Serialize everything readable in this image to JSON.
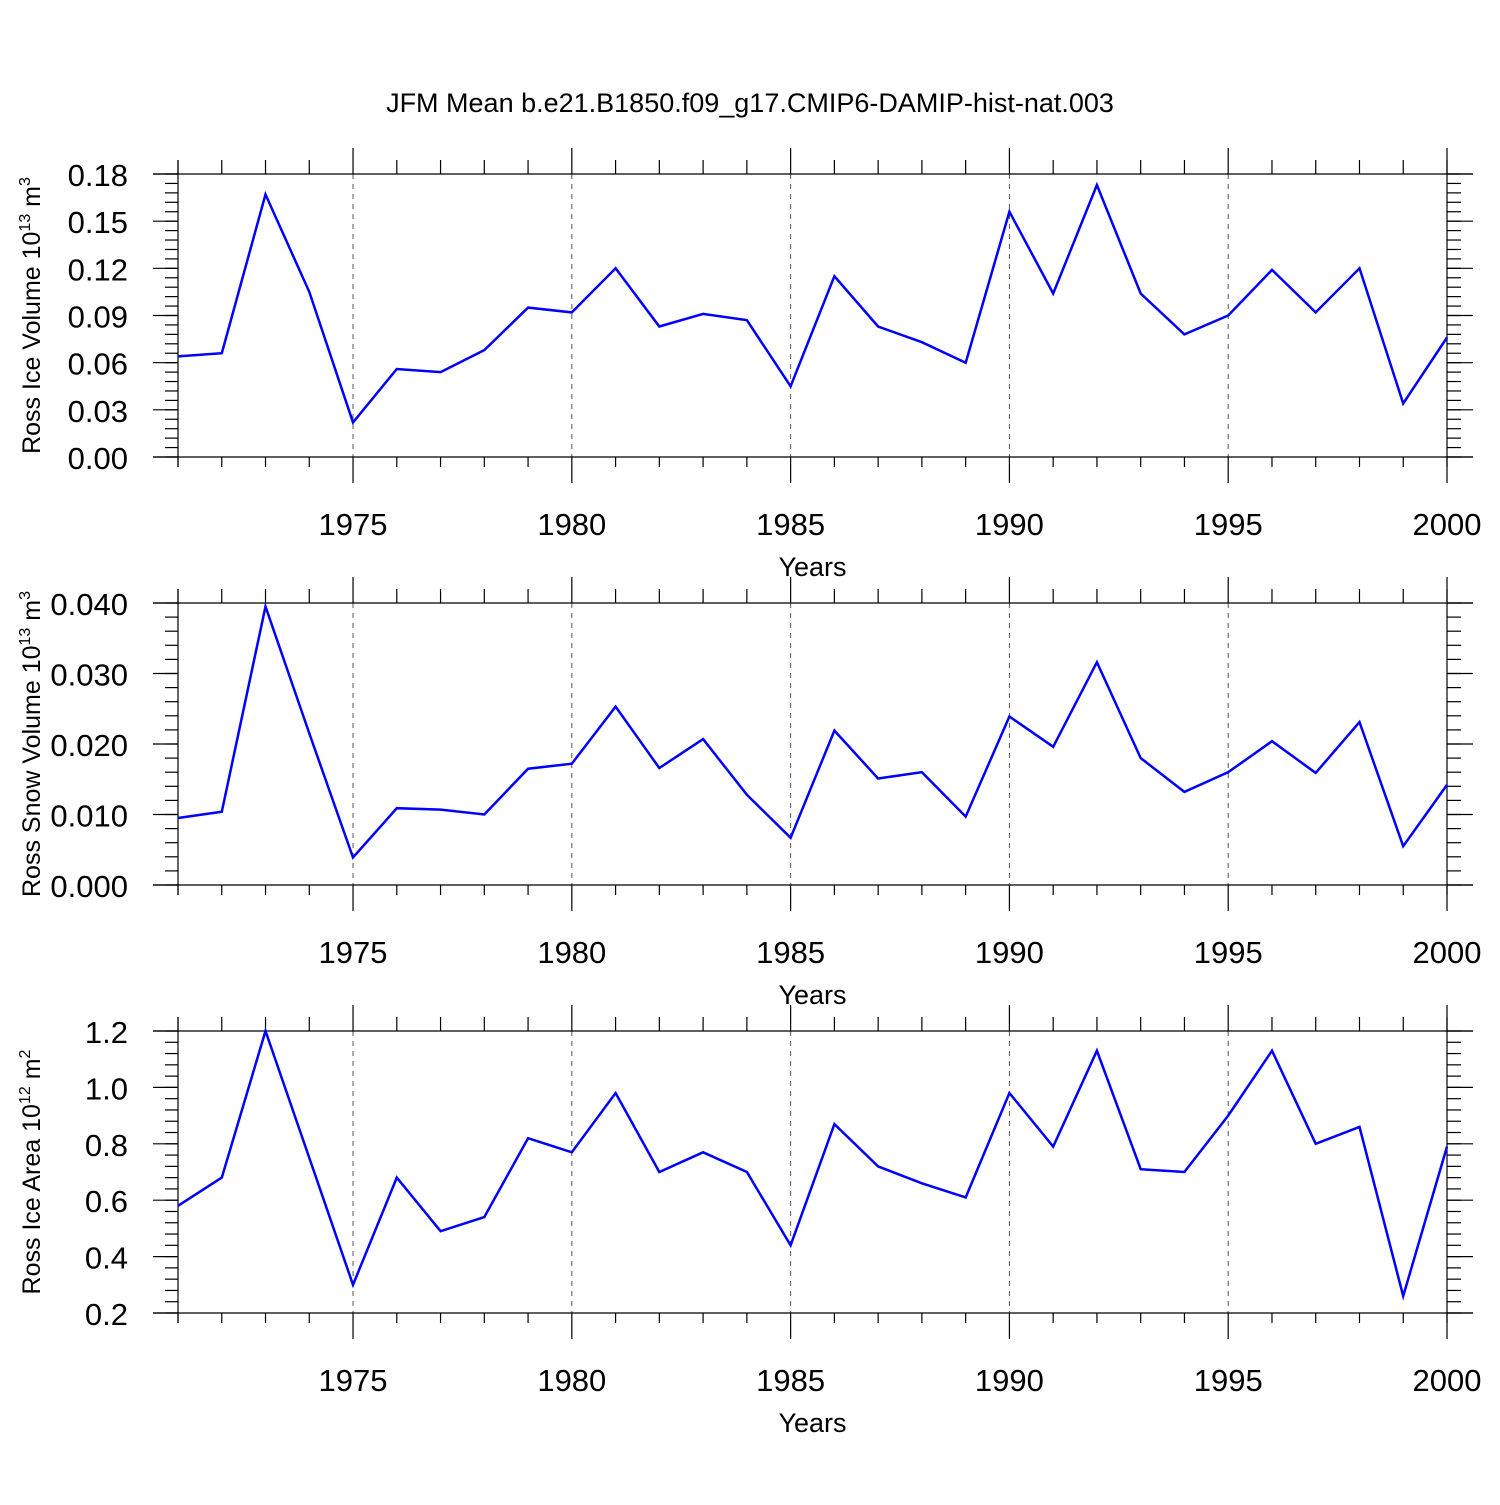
{
  "title": "JFM Mean b.e21.B1850.f09_g17.CMIP6-DAMIP-hist-nat.003",
  "colors": {
    "line": "#0000ff",
    "axes": "#000000",
    "grid": "#555555"
  },
  "chart_data": [
    {
      "type": "line",
      "ylabel_main": "Ross Ice Volume 10",
      "ylabel_sup": "13",
      "ylabel_unit": " m",
      "ylabel_unit_sup": "3",
      "xlabel": "Years",
      "xlim": [
        1971,
        2000
      ],
      "ylim": [
        0.0,
        0.18
      ],
      "yticks": [
        "0.00",
        "0.03",
        "0.06",
        "0.09",
        "0.12",
        "0.15",
        "0.18"
      ],
      "xticks": [
        "1975",
        "1980",
        "1985",
        "1990",
        "1995",
        "2000"
      ],
      "x": [
        1971,
        1972,
        1973,
        1974,
        1975,
        1976,
        1977,
        1978,
        1979,
        1980,
        1981,
        1982,
        1983,
        1984,
        1985,
        1986,
        1987,
        1988,
        1989,
        1990,
        1991,
        1992,
        1993,
        1994,
        1995,
        1996,
        1997,
        1998,
        1999,
        2000
      ],
      "series": [
        {
          "name": "Ross Ice Volume",
          "values": [
            0.064,
            0.066,
            0.167,
            0.105,
            0.022,
            0.056,
            0.054,
            0.068,
            0.095,
            0.092,
            0.12,
            0.083,
            0.091,
            0.087,
            0.045,
            0.115,
            0.083,
            0.073,
            0.06,
            0.156,
            0.104,
            0.173,
            0.104,
            0.078,
            0.09,
            0.119,
            0.092,
            0.12,
            0.034,
            0.076
          ]
        }
      ]
    },
    {
      "type": "line",
      "ylabel_main": "Ross Snow Volume 10",
      "ylabel_sup": "13",
      "ylabel_unit": " m",
      "ylabel_unit_sup": "3",
      "xlabel": "Years",
      "xlim": [
        1971,
        2000
      ],
      "ylim": [
        0.0,
        0.04
      ],
      "yticks": [
        "0.000",
        "0.010",
        "0.020",
        "0.030",
        "0.040"
      ],
      "xticks": [
        "1975",
        "1980",
        "1985",
        "1990",
        "1995",
        "2000"
      ],
      "x": [
        1971,
        1972,
        1973,
        1974,
        1975,
        1976,
        1977,
        1978,
        1979,
        1980,
        1981,
        1982,
        1983,
        1984,
        1985,
        1986,
        1987,
        1988,
        1989,
        1990,
        1991,
        1992,
        1993,
        1994,
        1995,
        1996,
        1997,
        1998,
        1999,
        2000
      ],
      "series": [
        {
          "name": "Ross Snow Volume",
          "values": [
            0.0095,
            0.0104,
            0.0395,
            0.0215,
            0.0039,
            0.0109,
            0.0107,
            0.01,
            0.0165,
            0.0172,
            0.0253,
            0.0166,
            0.0207,
            0.0128,
            0.0067,
            0.0219,
            0.0151,
            0.016,
            0.0097,
            0.0239,
            0.0196,
            0.0316,
            0.018,
            0.0132,
            0.016,
            0.0204,
            0.0159,
            0.0231,
            0.0055,
            0.0142
          ]
        }
      ]
    },
    {
      "type": "line",
      "ylabel_main": "Ross Ice Area 10",
      "ylabel_sup": "12",
      "ylabel_unit": " m",
      "ylabel_unit_sup": "2",
      "xlabel": "Years",
      "xlim": [
        1971,
        2000
      ],
      "ylim": [
        0.2,
        1.2
      ],
      "yticks": [
        "0.2",
        "0.4",
        "0.6",
        "0.8",
        "1.0",
        "1.2"
      ],
      "xticks": [
        "1975",
        "1980",
        "1985",
        "1990",
        "1995",
        "2000"
      ],
      "x": [
        1971,
        1972,
        1973,
        1974,
        1975,
        1976,
        1977,
        1978,
        1979,
        1980,
        1981,
        1982,
        1983,
        1984,
        1985,
        1986,
        1987,
        1988,
        1989,
        1990,
        1991,
        1992,
        1993,
        1994,
        1995,
        1996,
        1997,
        1998,
        1999,
        2000
      ],
      "series": [
        {
          "name": "Ross Ice Area",
          "values": [
            0.58,
            0.68,
            1.2,
            0.75,
            0.3,
            0.68,
            0.49,
            0.54,
            0.82,
            0.77,
            0.98,
            0.7,
            0.77,
            0.7,
            0.44,
            0.87,
            0.72,
            0.66,
            0.61,
            0.98,
            0.79,
            1.13,
            0.71,
            0.7,
            0.9,
            1.13,
            0.8,
            0.86,
            0.26,
            0.79
          ]
        }
      ]
    }
  ]
}
